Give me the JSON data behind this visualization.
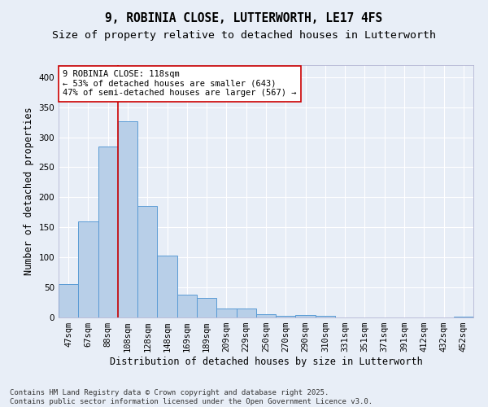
{
  "title_line1": "9, ROBINIA CLOSE, LUTTERWORTH, LE17 4FS",
  "title_line2": "Size of property relative to detached houses in Lutterworth",
  "xlabel": "Distribution of detached houses by size in Lutterworth",
  "ylabel": "Number of detached properties",
  "categories": [
    "47sqm",
    "67sqm",
    "88sqm",
    "108sqm",
    "128sqm",
    "148sqm",
    "169sqm",
    "189sqm",
    "209sqm",
    "229sqm",
    "250sqm",
    "270sqm",
    "290sqm",
    "310sqm",
    "331sqm",
    "351sqm",
    "371sqm",
    "391sqm",
    "412sqm",
    "432sqm",
    "452sqm"
  ],
  "values": [
    55,
    160,
    285,
    327,
    185,
    103,
    38,
    33,
    15,
    15,
    6,
    3,
    4,
    3,
    0,
    0,
    0,
    0,
    0,
    0,
    2
  ],
  "bar_color": "#b8cfe8",
  "bar_edge_color": "#5a9bd5",
  "background_color": "#e8eef7",
  "grid_color": "#ffffff",
  "vline_x": 2.5,
  "vline_color": "#cc0000",
  "annotation_text": "9 ROBINIA CLOSE: 118sqm\n← 53% of detached houses are smaller (643)\n47% of semi-detached houses are larger (567) →",
  "annotation_box_color": "#ffffff",
  "annotation_box_edge": "#cc0000",
  "ylim": [
    0,
    420
  ],
  "yticks": [
    0,
    50,
    100,
    150,
    200,
    250,
    300,
    350,
    400
  ],
  "footer": "Contains HM Land Registry data © Crown copyright and database right 2025.\nContains public sector information licensed under the Open Government Licence v3.0.",
  "title_fontsize": 10.5,
  "subtitle_fontsize": 9.5,
  "axis_label_fontsize": 8.5,
  "tick_fontsize": 7.5,
  "annotation_fontsize": 7.5,
  "footer_fontsize": 6.5
}
